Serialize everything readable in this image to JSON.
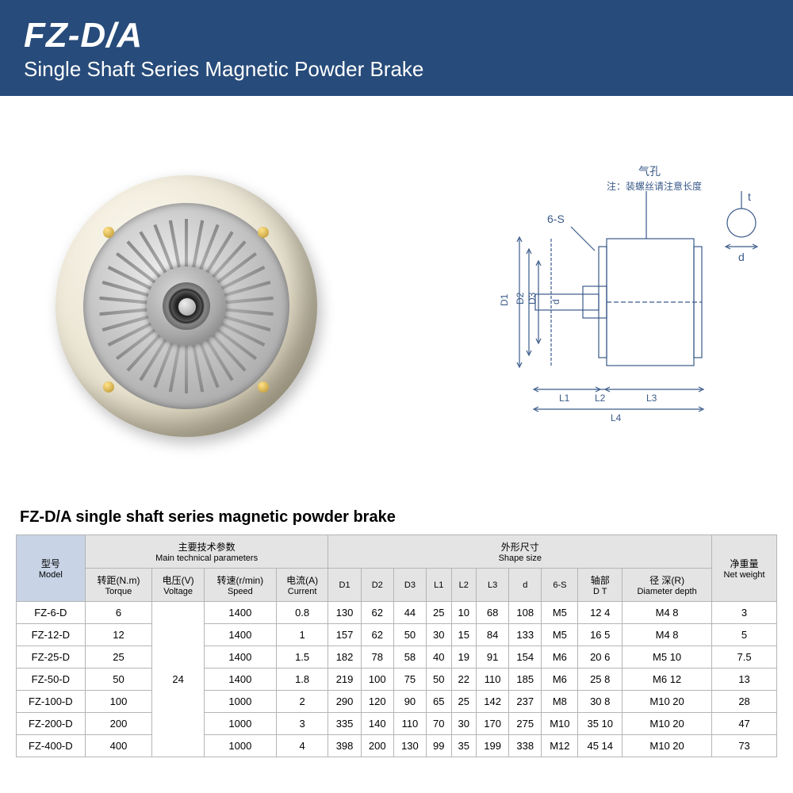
{
  "header": {
    "title": "FZ-D/A",
    "subtitle": "Single Shaft Series Magnetic Powder Brake"
  },
  "diagram": {
    "note_cn1": "气孔",
    "note_cn2": "注：装螺丝请注意长度",
    "t": "t",
    "d": "d",
    "6S": "6-S",
    "D1": "D1",
    "D2": "D2",
    "D3": "D3",
    "dd": "d",
    "L1": "L1",
    "L2": "L2",
    "L3": "L3",
    "L4": "L4"
  },
  "table": {
    "title": "FZ-D/A single shaft series magnetic powder brake",
    "groupHeads": {
      "model_cn": "型号",
      "model_en": "Model",
      "tech_cn": "主要技术参数",
      "tech_en": "Main technical parameters",
      "shape_cn": "外形尺寸",
      "shape_en": "Shape size",
      "weight_cn": "净重量",
      "weight_en": "Net weight"
    },
    "cols": [
      {
        "cn": "转距(N.m)",
        "en": "Torque"
      },
      {
        "cn": "电压(V)",
        "en": "Voltage"
      },
      {
        "cn": "转速(r/min)",
        "en": "Speed"
      },
      {
        "cn": "电流(A)",
        "en": "Current"
      },
      {
        "cn": "",
        "en": "D1"
      },
      {
        "cn": "",
        "en": "D2"
      },
      {
        "cn": "",
        "en": "D3"
      },
      {
        "cn": "",
        "en": "L1"
      },
      {
        "cn": "",
        "en": "L2"
      },
      {
        "cn": "",
        "en": "L3"
      },
      {
        "cn": "",
        "en": "d"
      },
      {
        "cn": "",
        "en": "6-S"
      },
      {
        "cn": "轴部",
        "en": "D   T"
      },
      {
        "cn": "径  深(R)",
        "en": "Diameter depth"
      }
    ],
    "voltage": "24",
    "rows": [
      {
        "m": "FZ-6-D",
        "v": [
          "6",
          "1400",
          "0.8",
          "130",
          "62",
          "44",
          "25",
          "10",
          "68",
          "108",
          "M5",
          "12  4",
          "M4  8",
          "3"
        ]
      },
      {
        "m": "FZ-12-D",
        "v": [
          "12",
          "1400",
          "1",
          "157",
          "62",
          "50",
          "30",
          "15",
          "84",
          "133",
          "M5",
          "16  5",
          "M4  8",
          "5"
        ]
      },
      {
        "m": "FZ-25-D",
        "v": [
          "25",
          "1400",
          "1.5",
          "182",
          "78",
          "58",
          "40",
          "19",
          "91",
          "154",
          "M6",
          "20  6",
          "M5  10",
          "7.5"
        ]
      },
      {
        "m": "FZ-50-D",
        "v": [
          "50",
          "1400",
          "1.8",
          "219",
          "100",
          "75",
          "50",
          "22",
          "110",
          "185",
          "M6",
          "25  8",
          "M6  12",
          "13"
        ]
      },
      {
        "m": "FZ-100-D",
        "v": [
          "100",
          "1000",
          "2",
          "290",
          "120",
          "90",
          "65",
          "25",
          "142",
          "237",
          "M8",
          "30  8",
          "M10  20",
          "28"
        ]
      },
      {
        "m": "FZ-200-D",
        "v": [
          "200",
          "1000",
          "3",
          "335",
          "140",
          "110",
          "70",
          "30",
          "170",
          "275",
          "M10",
          "35  10",
          "M10  20",
          "47"
        ]
      },
      {
        "m": "FZ-400-D",
        "v": [
          "400",
          "1000",
          "4",
          "398",
          "200",
          "130",
          "99",
          "35",
          "199",
          "338",
          "M12",
          "45  14",
          "M10  20",
          "73"
        ]
      }
    ]
  }
}
